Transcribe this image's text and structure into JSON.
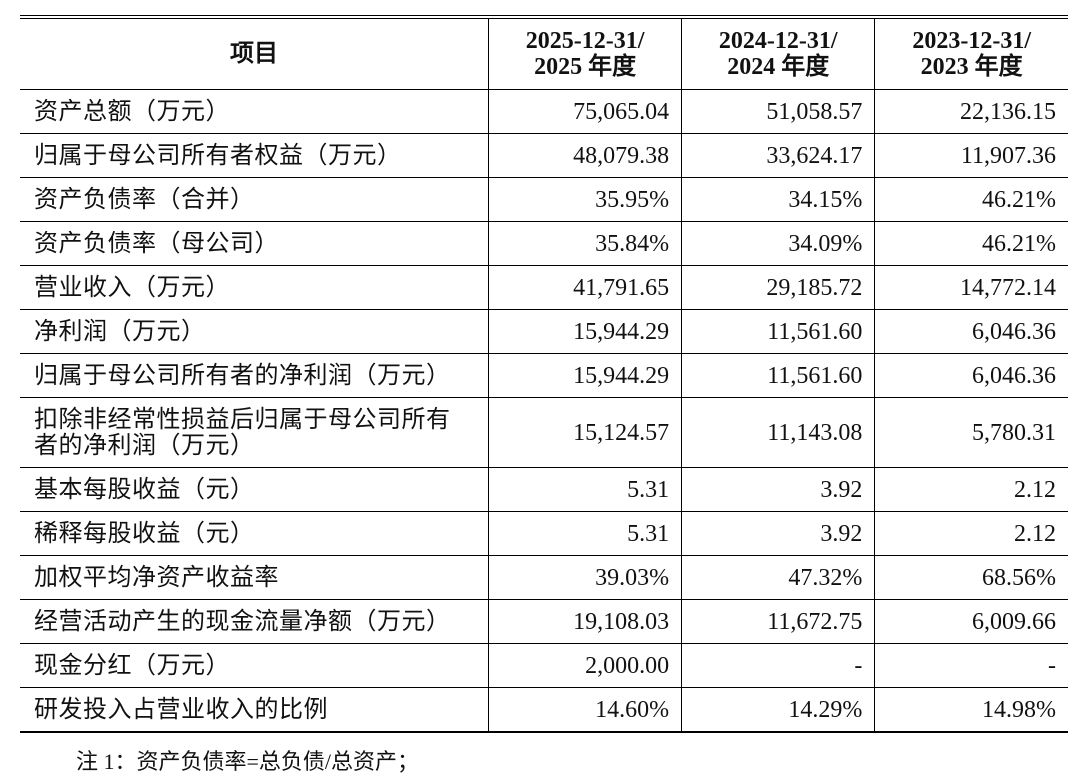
{
  "table": {
    "header": [
      [
        "项目"
      ],
      [
        "2025-12-31/",
        "2025 年度"
      ],
      [
        "2024-12-31/",
        "2024 年度"
      ],
      [
        "2023-12-31/",
        "2023 年度"
      ]
    ],
    "rows": [
      [
        "资产总额（万元）",
        "75,065.04",
        "51,058.57",
        "22,136.15"
      ],
      [
        "归属于母公司所有者权益（万元）",
        "48,079.38",
        "33,624.17",
        "11,907.36"
      ],
      [
        "资产负债率（合并）",
        "35.95%",
        "34.15%",
        "46.21%"
      ],
      [
        "资产负债率（母公司）",
        "35.84%",
        "34.09%",
        "46.21%"
      ],
      [
        "营业收入（万元）",
        "41,791.65",
        "29,185.72",
        "14,772.14"
      ],
      [
        "净利润（万元）",
        "15,944.29",
        "11,561.60",
        "6,046.36"
      ],
      [
        "归属于母公司所有者的净利润（万元）",
        "15,944.29",
        "11,561.60",
        "6,046.36"
      ],
      [
        "扣除非经常性损益后归属于母公司所有者的净利润（万元）",
        "15,124.57",
        "11,143.08",
        "5,780.31"
      ],
      [
        "基本每股收益（元）",
        "5.31",
        "3.92",
        "2.12"
      ],
      [
        "稀释每股收益（元）",
        "5.31",
        "3.92",
        "2.12"
      ],
      [
        "加权平均净资产收益率",
        "39.03%",
        "47.32%",
        "68.56%"
      ],
      [
        "经营活动产生的现金流量净额（万元）",
        "19,108.03",
        "11,672.75",
        "6,009.66"
      ],
      [
        "现金分红（万元）",
        "2,000.00",
        "-",
        "-"
      ],
      [
        "研发投入占营业收入的比例",
        "14.60%",
        "14.29%",
        "14.98%"
      ]
    ]
  },
  "note": "注 1：资产负债率=总负债/总资产；"
}
